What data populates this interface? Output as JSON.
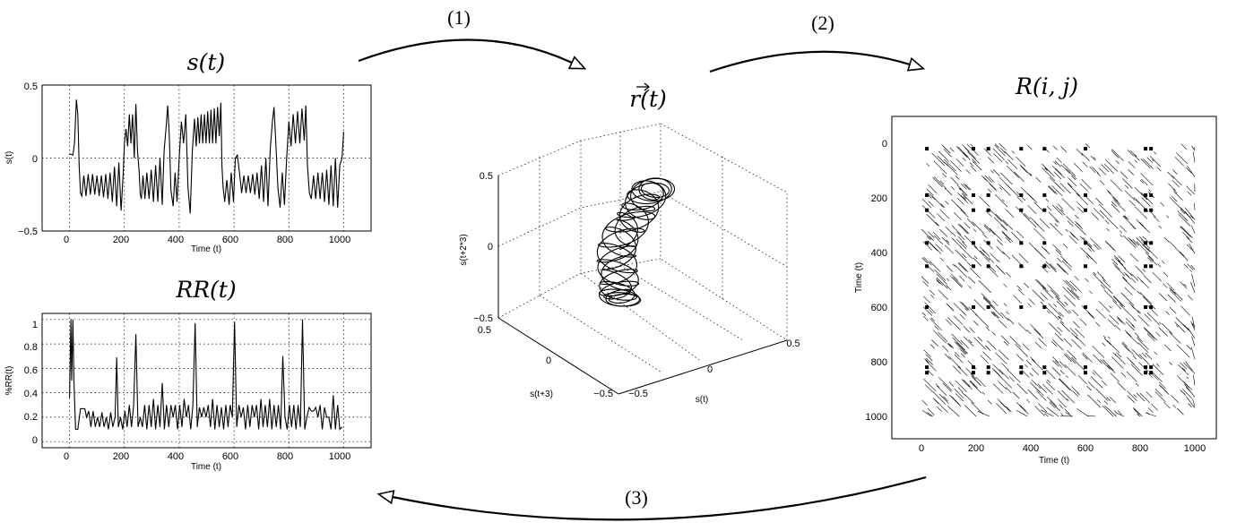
{
  "arrows": {
    "step1": "(1)",
    "step2": "(2)",
    "step3": "(3)"
  },
  "timeseries": {
    "title": "s(t)",
    "ylabel": "s(t)",
    "xlabel": "Time (t)",
    "x_ticks": [
      "0",
      "200",
      "400",
      "600",
      "800",
      "1000"
    ],
    "y_ticks": [
      "0.5",
      "0",
      "−0.5"
    ]
  },
  "recurrence_rate": {
    "title": "RR(t)",
    "ylabel": "%RR(t)",
    "xlabel": "Time (t)",
    "x_ticks": [
      "0",
      "200",
      "400",
      "600",
      "800",
      "1000"
    ],
    "y_ticks": [
      "1",
      "0.8",
      "0.6",
      "0.4",
      "0.2",
      "0"
    ]
  },
  "phase_space": {
    "title": "r(t)",
    "z_label": "s(t+2*3)",
    "x_label": "s(t+3)",
    "y_label": "s(t)",
    "z_ticks": [
      "0.5",
      "0",
      "−0.5"
    ],
    "x_ticks": [
      "0.5",
      "0",
      "−0.5"
    ],
    "y_ticks": [
      "−0.5",
      "0",
      "0.5"
    ]
  },
  "recurrence_plot": {
    "title": "R(i, j)",
    "ylabel": "Time (t)",
    "xlabel": "Time (t)",
    "x_ticks": [
      "0",
      "200",
      "400",
      "600",
      "800",
      "1000"
    ],
    "y_ticks": [
      "0",
      "200",
      "400",
      "600",
      "800",
      "1000"
    ]
  },
  "chart_data": [
    {
      "type": "line",
      "title": "s(t)",
      "xlabel": "Time (t)",
      "ylabel": "s(t)",
      "xlim": [
        -100,
        1100
      ],
      "ylim": [
        -0.5,
        0.5
      ],
      "grid": true,
      "series": [
        {
          "x": [
            0,
            12,
            18,
            25,
            30,
            35,
            40,
            45,
            52,
            60,
            68,
            76,
            84,
            92,
            100,
            108,
            116,
            124,
            132,
            140,
            148,
            156,
            164,
            172,
            180,
            188,
            196,
            200,
            206,
            212,
            218,
            224,
            230,
            236,
            242,
            248,
            254,
            258,
            262,
            268,
            275,
            282,
            290,
            298,
            306,
            314,
            322,
            330,
            338,
            345,
            352,
            358,
            364,
            370,
            378,
            385,
            392,
            400,
            408,
            416,
            424,
            432,
            440,
            448,
            456,
            462,
            468,
            474,
            480,
            486,
            492,
            498,
            504,
            510,
            516,
            522,
            528,
            534,
            540,
            546,
            552,
            556,
            560,
            566,
            574,
            582,
            590,
            598,
            605,
            612,
            620,
            628,
            636,
            644,
            652,
            660,
            668,
            676,
            684,
            692,
            700,
            708,
            716,
            724,
            732,
            740,
            746,
            752,
            760,
            768,
            776,
            784,
            792,
            800,
            808,
            816,
            824,
            832,
            840,
            848,
            856,
            862,
            868,
            875,
            882,
            890,
            898,
            906,
            914,
            922,
            930,
            938,
            946,
            954,
            962,
            970,
            978,
            986,
            994,
            1000
          ],
          "y": [
            0.03,
            0.02,
            0.1,
            0.4,
            0.3,
            -0.05,
            -0.24,
            -0.26,
            -0.12,
            -0.26,
            -0.11,
            -0.25,
            -0.11,
            -0.25,
            -0.12,
            -0.26,
            -0.12,
            -0.27,
            -0.11,
            -0.28,
            -0.1,
            -0.3,
            -0.06,
            -0.33,
            -0.03,
            -0.36,
            -0.1,
            0.1,
            0.2,
            0.08,
            0.3,
            0.1,
            0.3,
            0.0,
            0.37,
            0.05,
            -0.1,
            -0.25,
            -0.28,
            -0.12,
            -0.28,
            -0.1,
            -0.28,
            -0.08,
            -0.3,
            -0.05,
            -0.3,
            0.0,
            -0.32,
            0.05,
            0.2,
            0.36,
            0.15,
            -0.22,
            -0.33,
            -0.1,
            -0.3,
            0.0,
            0.25,
            0.1,
            0.3,
            -0.2,
            -0.38,
            0.05,
            0.27,
            0.08,
            0.28,
            0.1,
            0.3,
            0.1,
            0.3,
            0.1,
            0.32,
            0.1,
            0.33,
            0.1,
            0.34,
            0.1,
            0.35,
            0.15,
            0.38,
            -0.05,
            -0.2,
            -0.3,
            -0.15,
            -0.32,
            -0.1,
            -0.3,
            0.0,
            0.02,
            -0.1,
            -0.24,
            -0.12,
            -0.24,
            -0.12,
            -0.24,
            -0.11,
            -0.25,
            -0.1,
            -0.28,
            -0.05,
            -0.3,
            0.0,
            -0.33,
            0.06,
            0.25,
            0.35,
            0.12,
            -0.2,
            -0.34,
            -0.1,
            -0.32,
            0.0,
            0.25,
            0.08,
            0.3,
            0.1,
            0.32,
            0.1,
            0.34,
            0.12,
            0.36,
            -0.05,
            -0.24,
            -0.28,
            -0.12,
            -0.28,
            -0.1,
            -0.28,
            -0.1,
            -0.3,
            -0.08,
            -0.32,
            -0.05,
            -0.33,
            0.0,
            -0.34,
            -0.05,
            0.0,
            0.18
          ]
        }
      ]
    },
    {
      "type": "line",
      "title": "RR(t)",
      "xlabel": "Time (t)",
      "ylabel": "%RR(t)",
      "xlim": [
        -100,
        1100
      ],
      "ylim": [
        -0.05,
        1.05
      ],
      "grid": true,
      "series": [
        {
          "x": [
            0,
            5,
            8,
            12,
            16,
            22,
            30,
            40,
            48,
            56,
            62,
            70,
            78,
            86,
            94,
            102,
            110,
            118,
            126,
            134,
            142,
            150,
            158,
            166,
            172,
            178,
            186,
            194,
            202,
            210,
            218,
            226,
            234,
            242,
            250,
            258,
            266,
            274,
            282,
            290,
            298,
            306,
            314,
            322,
            330,
            338,
            346,
            354,
            362,
            370,
            378,
            386,
            394,
            402,
            410,
            418,
            426,
            434,
            442,
            450,
            458,
            466,
            474,
            482,
            490,
            498,
            506,
            514,
            522,
            530,
            538,
            546,
            554,
            562,
            570,
            578,
            586,
            594,
            602,
            610,
            618,
            626,
            634,
            642,
            650,
            658,
            666,
            674,
            682,
            690,
            698,
            706,
            714,
            722,
            730,
            738,
            746,
            754,
            762,
            770,
            778,
            786,
            794,
            802,
            810,
            818,
            826,
            834,
            842,
            850,
            858,
            866,
            874,
            882,
            890,
            898,
            906,
            914,
            922,
            930,
            938,
            946,
            954,
            962,
            970,
            978,
            986,
            994
          ],
          "y": [
            0.36,
            1.0,
            0.5,
            1.0,
            0.5,
            0.1,
            0.1,
            0.27,
            0.27,
            0.27,
            0.2,
            0.25,
            0.12,
            0.25,
            0.12,
            0.2,
            0.12,
            0.24,
            0.12,
            0.2,
            0.1,
            0.24,
            0.12,
            0.2,
            0.69,
            0.12,
            0.2,
            0.1,
            0.25,
            0.12,
            0.3,
            0.12,
            0.3,
            0.88,
            0.12,
            0.2,
            0.12,
            0.3,
            0.1,
            0.3,
            0.12,
            0.35,
            0.1,
            0.3,
            0.12,
            0.48,
            0.1,
            0.3,
            0.12,
            0.3,
            0.2,
            0.3,
            0.1,
            0.3,
            0.12,
            0.35,
            0.2,
            0.3,
            0.1,
            0.3,
            0.97,
            0.12,
            0.28,
            0.2,
            0.28,
            0.2,
            0.3,
            0.12,
            0.35,
            0.1,
            0.3,
            0.12,
            0.28,
            0.1,
            0.3,
            0.12,
            0.3,
            0.2,
            0.98,
            0.12,
            0.3,
            0.2,
            0.28,
            0.1,
            0.3,
            0.12,
            0.3,
            0.2,
            0.3,
            0.1,
            0.35,
            0.12,
            0.3,
            0.12,
            0.35,
            0.1,
            0.3,
            0.12,
            0.3,
            0.1,
            0.7,
            0.2,
            0.1,
            0.3,
            0.12,
            0.3,
            0.1,
            0.3,
            0.12,
            1.0,
            0.1,
            0.2,
            0.28,
            0.25,
            0.25,
            0.28,
            0.2,
            0.3,
            0.1,
            0.28,
            0.2,
            0.2,
            0.1,
            0.38,
            0.1,
            0.3,
            0.1,
            0.12
          ]
        }
      ]
    }
  ]
}
